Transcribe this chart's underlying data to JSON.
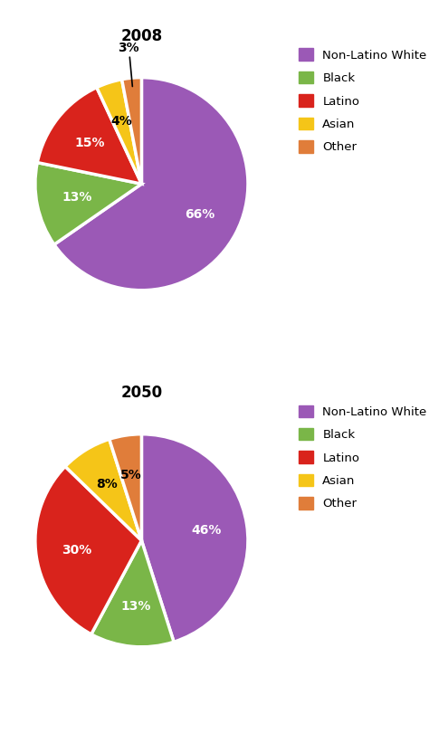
{
  "chart1": {
    "title": "2008",
    "values": [
      66,
      13,
      15,
      4,
      3
    ],
    "colors": [
      "#9b59b6",
      "#7ab648",
      "#d9231c",
      "#f5c518",
      "#e07d3a"
    ],
    "pct_labels": [
      "66%",
      "13%",
      "15%",
      "4%",
      "3%"
    ],
    "startangle": 90
  },
  "chart2": {
    "title": "2050",
    "values": [
      46,
      13,
      30,
      8,
      5
    ],
    "colors": [
      "#9b59b6",
      "#7ab648",
      "#d9231c",
      "#f5c518",
      "#e07d3a"
    ],
    "pct_labels": [
      "46%",
      "13%",
      "30%",
      "8%",
      "5%"
    ],
    "startangle": 90
  },
  "legend_labels": [
    "Non-Latino White",
    "Black",
    "Latino",
    "Asian",
    "Other"
  ],
  "legend_colors": [
    "#9b59b6",
    "#7ab648",
    "#d9231c",
    "#f5c518",
    "#e07d3a"
  ],
  "bg_color": "#ffffff",
  "wedge_edge_color": "#ffffff",
  "label_fontsize": 10,
  "title_fontsize": 12,
  "legend_fontsize": 9.5
}
